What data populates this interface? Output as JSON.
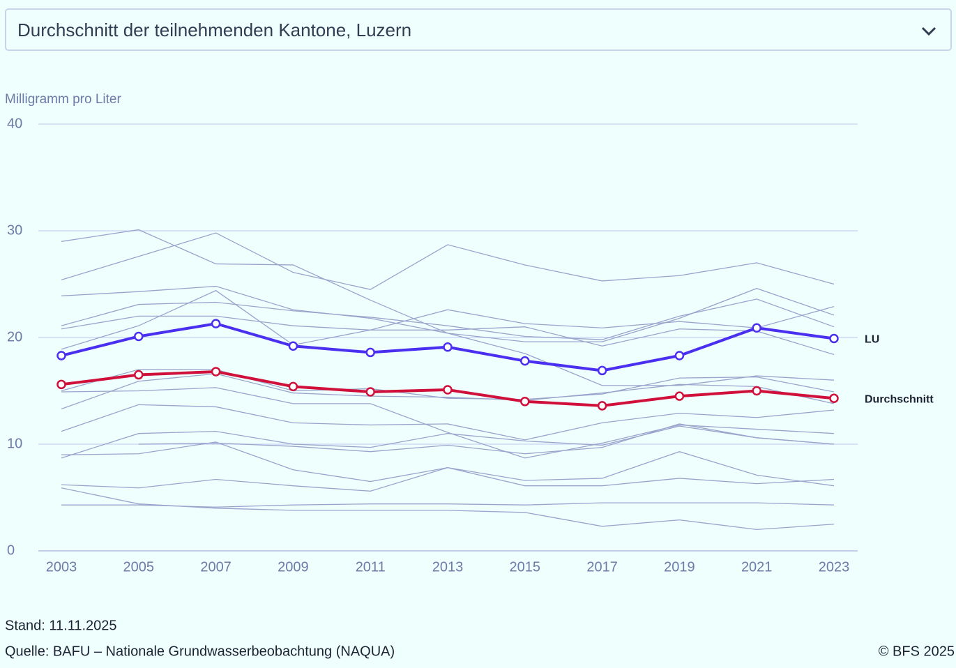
{
  "dropdown": {
    "label": "Durchschnitt der teilnehmenden Kantone, Luzern"
  },
  "chart_data": {
    "type": "line",
    "y_label": "Milligramm pro Liter",
    "x": [
      2003,
      2005,
      2007,
      2009,
      2011,
      2013,
      2015,
      2017,
      2019,
      2021,
      2023
    ],
    "ylim": [
      0,
      40
    ],
    "yticks": [
      0,
      10,
      20,
      30,
      40
    ],
    "grid": true,
    "series": [
      {
        "color": "#9aa3cc",
        "values": [
          29.0,
          30.1,
          26.9,
          26.8,
          23.5,
          20.4,
          18.5,
          15.5,
          15.5,
          16.4,
          16.0
        ]
      },
      {
        "color": "#9aa3cc",
        "values": [
          25.4,
          27.6,
          29.8,
          26.1,
          24.5,
          28.7,
          26.8,
          25.3,
          25.8,
          27.0,
          25.0
        ]
      },
      {
        "color": "#9aa3cc",
        "values": [
          23.9,
          24.3,
          24.8,
          22.6,
          21.8,
          20.4,
          19.6,
          19.6,
          21.8,
          24.6,
          22.1
        ]
      },
      {
        "color": "#9aa3cc",
        "values": [
          21.1,
          23.1,
          23.3,
          22.5,
          21.9,
          21.1,
          20.1,
          19.8,
          22.0,
          23.6,
          21.0
        ]
      },
      {
        "color": "#9aa3cc",
        "values": [
          20.8,
          22.0,
          22.0,
          21.1,
          20.7,
          20.7,
          21.0,
          19.2,
          20.8,
          20.6,
          18.4
        ]
      },
      {
        "color": "#9aa3cc",
        "values": [
          18.9,
          21.1,
          24.4,
          19.3,
          20.7,
          22.6,
          21.3,
          20.9,
          21.5,
          20.9,
          22.9
        ]
      },
      {
        "color": "#9aa3cc",
        "values": [
          15.0,
          17.0,
          17.0,
          15.0,
          15.2,
          14.3,
          14.2,
          14.7,
          16.2,
          16.3,
          14.9
        ]
      },
      {
        "color": "#9aa3cc",
        "values": [
          14.9,
          15.0,
          15.3,
          13.8,
          13.8,
          11.1,
          8.7,
          10.1,
          11.8,
          11.4,
          11.0
        ]
      },
      {
        "color": "#9aa3cc",
        "values": [
          13.3,
          15.9,
          16.6,
          14.8,
          14.5,
          14.4,
          14.1,
          14.8,
          15.6,
          15.4,
          13.8
        ]
      },
      {
        "color": "#9aa3cc",
        "values": [
          11.2,
          13.7,
          13.5,
          12.0,
          11.8,
          11.9,
          10.4,
          12.0,
          12.9,
          12.5,
          13.2
        ]
      },
      {
        "color": "#9aa3cc",
        "values": [
          8.7,
          11.0,
          11.2,
          10.0,
          9.7,
          11.0,
          10.3,
          9.9,
          11.7,
          10.6,
          10.0
        ]
      },
      {
        "color": "#9aa3cc",
        "values": [
          9.0,
          9.1,
          10.2,
          7.6,
          6.5,
          7.8,
          6.6,
          6.8,
          9.3,
          7.1,
          6.1
        ]
      },
      {
        "color": "#9aa3cc",
        "values": [
          null,
          10.0,
          10.1,
          9.8,
          9.3,
          9.9,
          9.1,
          9.7,
          11.9,
          10.6,
          10.0
        ]
      },
      {
        "color": "#9aa3cc",
        "values": [
          6.2,
          5.9,
          6.7,
          6.1,
          5.6,
          7.8,
          6.1,
          6.1,
          6.8,
          6.3,
          6.7
        ]
      },
      {
        "color": "#9aa3cc",
        "values": [
          5.9,
          4.4,
          4.0,
          3.8,
          3.8,
          3.8,
          3.6,
          2.3,
          2.9,
          2.0,
          2.5
        ]
      },
      {
        "color": "#9aa3cc",
        "values": [
          4.3,
          4.3,
          4.1,
          4.3,
          4.4,
          4.4,
          4.3,
          4.5,
          4.5,
          4.5,
          4.3
        ]
      },
      {
        "name": "Durchschnitt",
        "color": "#d0103a",
        "markers": true,
        "values": [
          15.6,
          16.5,
          16.8,
          15.4,
          14.9,
          15.1,
          14.0,
          13.6,
          14.5,
          15.0,
          14.3
        ]
      },
      {
        "name": "LU",
        "color": "#4b2ff0",
        "markers": true,
        "values": [
          18.3,
          20.1,
          21.3,
          19.2,
          18.6,
          19.1,
          17.8,
          16.9,
          18.3,
          20.9,
          19.9
        ]
      }
    ]
  },
  "footer": {
    "stand": "Stand: 11.11.2025",
    "source": "Quelle: BAFU – Nationale Grundwasserbeobachtung (NAQUA)",
    "copyright": "© BFS 2025"
  }
}
